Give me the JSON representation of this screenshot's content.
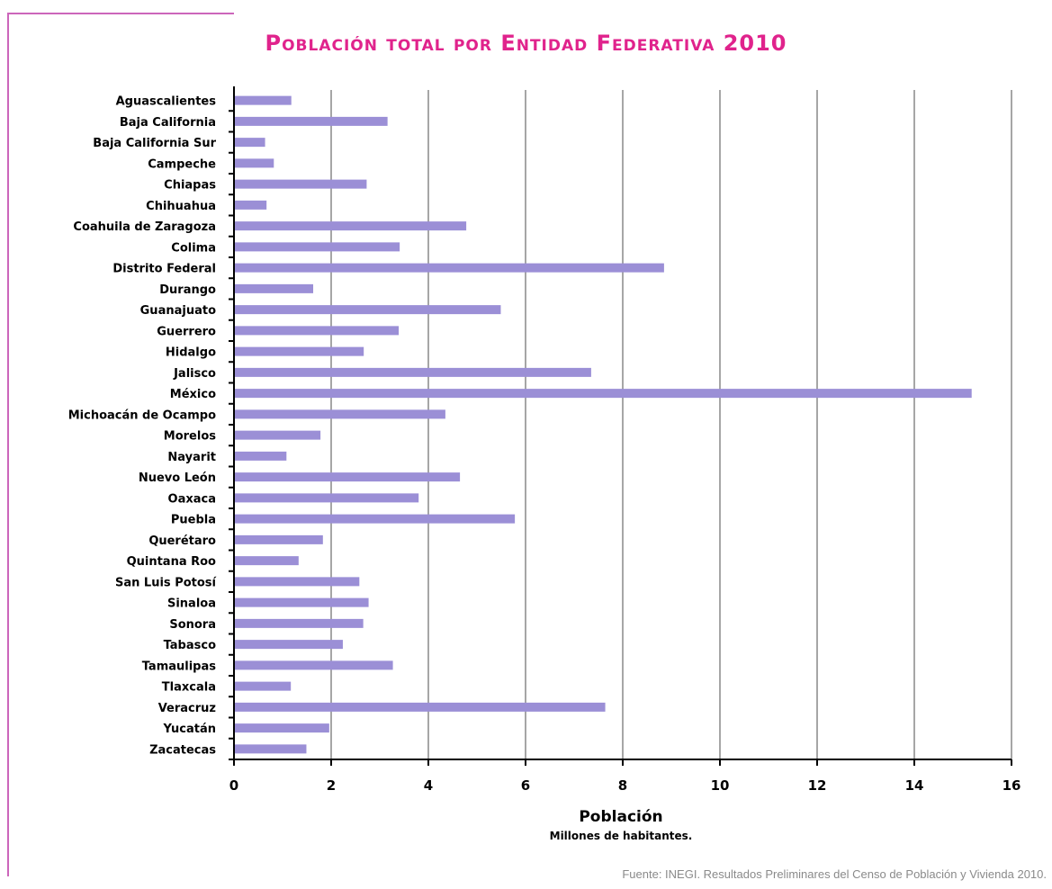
{
  "title": "Población total por Entidad Federativa 2010",
  "source": "Fuente: INEGI. Resultados Preliminares del Censo de Población y Vivienda 2010.",
  "colors": {
    "bar": "#9b8fd6",
    "title": "#e0238c",
    "frame": "#cc66bb",
    "grid": "#a6a6a6"
  },
  "chart_data": {
    "type": "bar",
    "orientation": "horizontal",
    "title": "Población total por Entidad Federativa 2010",
    "xlabel": "Población",
    "xlabel_sub": "Millones de habitantes.",
    "ylabel": "",
    "xlim": [
      0,
      16
    ],
    "xticks": [
      0,
      2,
      4,
      6,
      8,
      10,
      12,
      14,
      16
    ],
    "grid": "vertical",
    "legend": "none",
    "categories": [
      "Aguascalientes",
      "Baja California",
      "Baja California Sur",
      "Campeche",
      "Chiapas",
      "Chihuahua",
      "Coahuila de Zaragoza",
      "Colima",
      "Distrito Federal",
      "Durango",
      "Guanajuato",
      "Guerrero",
      "Hidalgo",
      "Jalisco",
      "México",
      "Michoacán de Ocampo",
      "Morelos",
      "Nayarit",
      "Nuevo León",
      "Oaxaca",
      "Puebla",
      "Querétaro",
      "Quintana Roo",
      "San Luis Potosí",
      "Sinaloa",
      "Sonora",
      "Tabasco",
      "Tamaulipas",
      "Tlaxcala",
      "Veracruz",
      "Yucatán",
      "Zacatecas"
    ],
    "values": [
      1.18,
      3.16,
      0.64,
      0.82,
      2.73,
      0.67,
      4.78,
      3.41,
      8.85,
      1.63,
      5.49,
      3.39,
      2.67,
      7.35,
      15.18,
      4.35,
      1.78,
      1.08,
      4.65,
      3.8,
      5.78,
      1.83,
      1.33,
      2.58,
      2.77,
      2.66,
      2.24,
      3.27,
      1.17,
      7.64,
      1.96,
      1.49
    ]
  }
}
